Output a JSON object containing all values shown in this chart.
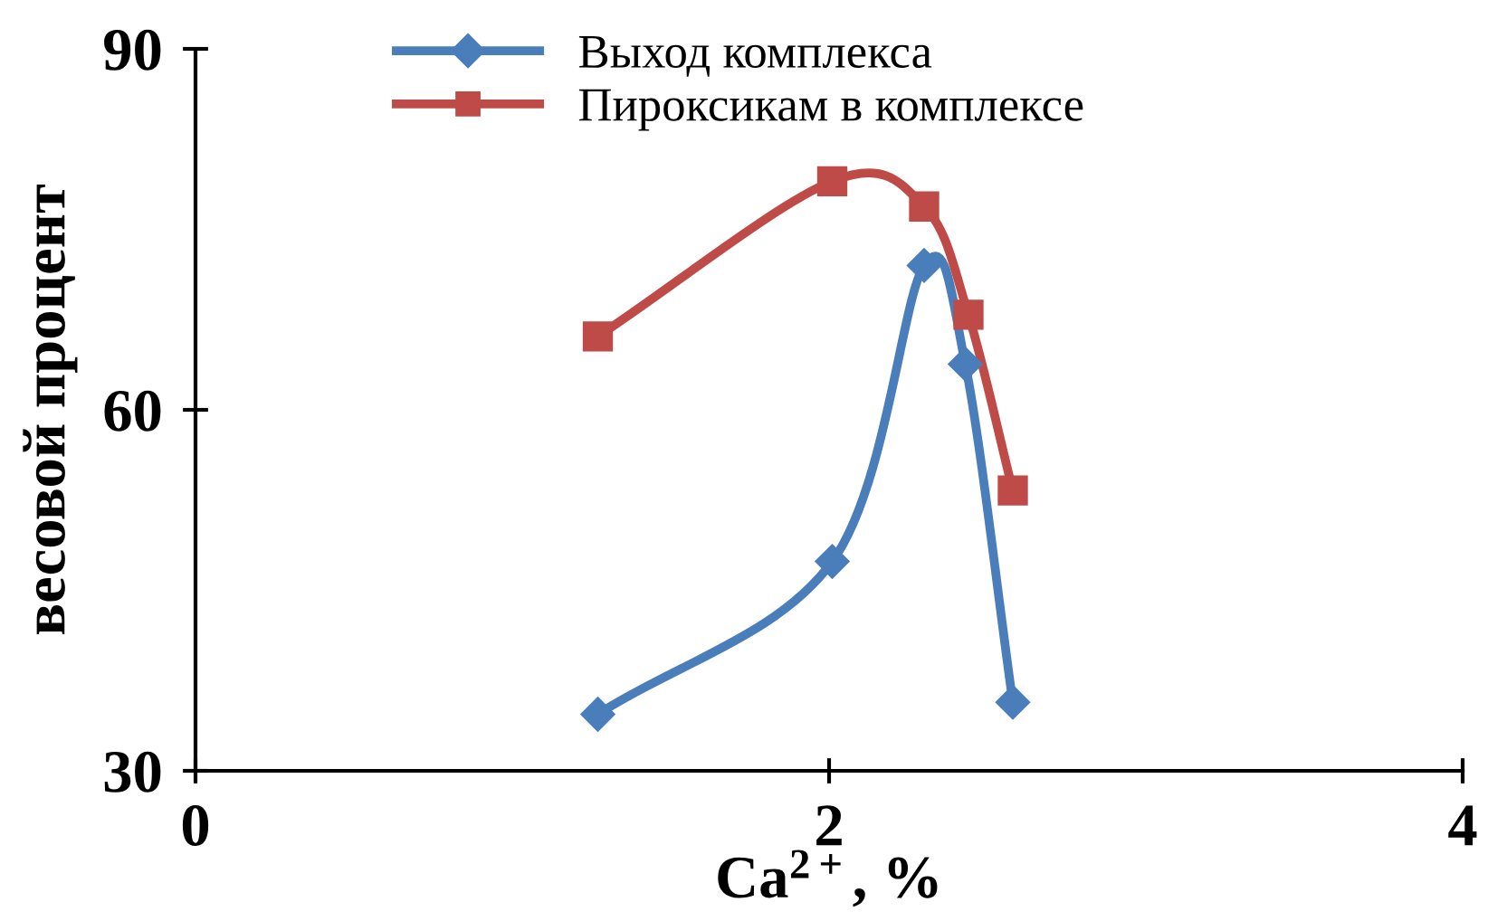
{
  "chart_data": {
    "type": "line",
    "xlabel": "Ca$^{2+}$, %",
    "ylabel": "весовой процент",
    "xlim": [
      0,
      4
    ],
    "xticks": [
      0,
      2,
      4
    ],
    "ylim": [
      30,
      90
    ],
    "yticks": [
      30,
      60,
      90
    ],
    "grid": false,
    "legend": "top",
    "line_style": "solid",
    "series": [
      {
        "name": "Выход комплекса",
        "color": "#4a7ebb",
        "marker": "diamond",
        "x": [
          1.27,
          2.01,
          2.3,
          2.43,
          2.58
        ],
        "values": [
          34.7,
          47.4,
          72,
          63.8,
          35.7
        ]
      },
      {
        "name": "Пироксикам в комплексе",
        "color": "#be4b48",
        "marker": "square",
        "x": [
          1.27,
          2.01,
          2.3,
          2.44,
          2.58
        ],
        "values": [
          66.1,
          79,
          76.9,
          67.9,
          53.3
        ]
      }
    ]
  }
}
